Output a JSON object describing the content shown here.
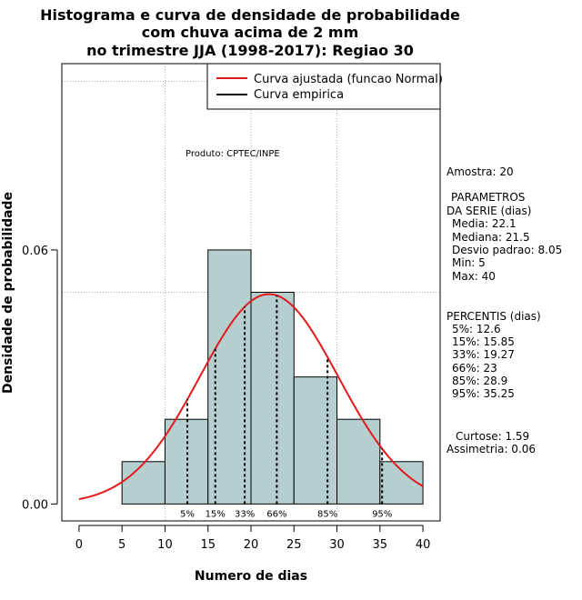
{
  "chart_data": {
    "type": "bar",
    "title_lines": [
      "Histograma e curva de densidade de probabilidade",
      "com chuva acima de 2 mm",
      "no trimestre JJA (1998-2017): Regiao 30"
    ],
    "xlabel": "Numero de dias",
    "ylabel": "Densidade de probabilidade",
    "xlim": [
      -2,
      42
    ],
    "ylim": [
      -0.004,
      0.104
    ],
    "x_ticks": [
      0,
      5,
      10,
      15,
      20,
      25,
      30,
      35,
      40
    ],
    "y_ticks": [
      0.0,
      0.06
    ],
    "y_tick_labels": [
      "0.00",
      "0.06"
    ],
    "bins": [
      {
        "start": 5,
        "end": 10,
        "value": 0.01
      },
      {
        "start": 10,
        "end": 15,
        "value": 0.02
      },
      {
        "start": 15,
        "end": 20,
        "value": 0.06
      },
      {
        "start": 20,
        "end": 25,
        "value": 0.05
      },
      {
        "start": 25,
        "end": 30,
        "value": 0.03
      },
      {
        "start": 30,
        "end": 35,
        "value": 0.02
      },
      {
        "start": 35,
        "end": 40,
        "value": 0.01
      }
    ],
    "bar_color": "#b5cece",
    "curve_color": "#e31a1c",
    "grid_x": [
      10,
      20,
      30
    ],
    "grid_y": [
      0.05,
      0.0998
    ],
    "normal_curve": {
      "mean": 22.1,
      "sd": 8.05,
      "x_range": [
        0,
        40
      ]
    },
    "percentile_lines": [
      {
        "label": "5%",
        "x": 12.6
      },
      {
        "label": "15%",
        "x": 15.85
      },
      {
        "label": "33%",
        "x": 19.27
      },
      {
        "label": "66%",
        "x": 23
      },
      {
        "label": "85%",
        "x": 28.9
      },
      {
        "label": "95%",
        "x": 35.25
      }
    ],
    "legend": [
      {
        "label": "Curva ajustada (funcao Normal)",
        "color": "#e31a1c"
      },
      {
        "label": "Curva empirica",
        "color": "#000000"
      }
    ],
    "legend_placement": "top-right",
    "product_label": "Produto: CPTEC/INPE"
  },
  "stats": {
    "amostra": "Amostra: 20",
    "param_header_1": "PARAMETROS",
    "param_header_2": "DA SERIE (dias)",
    "media": "Media: 22.1",
    "mediana": "Mediana: 21.5",
    "desvio": "Desvio padrao: 8.05",
    "min": "Min: 5",
    "max": "Max: 40",
    "perc_header": "PERCENTIS (dias)",
    "p5": "5%: 12.6",
    "p15": "15%: 15.85",
    "p33": "33%: 19.27",
    "p66": "66%: 23",
    "p85": "85%: 28.9",
    "p95": "95%: 35.25",
    "curtose": "Curtose: 1.59",
    "assimetria": "Assimetria: 0.06"
  }
}
